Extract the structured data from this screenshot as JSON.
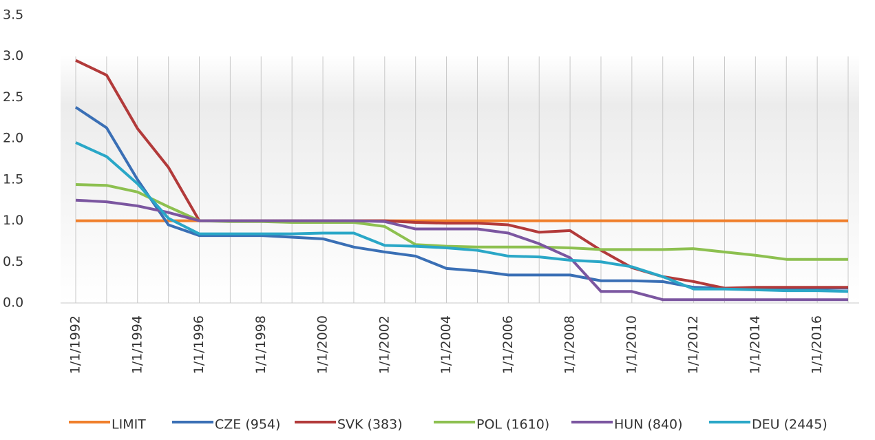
{
  "chart_data": {
    "type": "line",
    "categories": [
      "1/1/1992",
      null,
      "1/1/1994",
      null,
      "1/1/1996",
      null,
      "1/1/1998",
      null,
      "1/1/2000",
      null,
      "1/1/2002",
      null,
      "1/1/2004",
      null,
      "1/1/2006",
      null,
      "1/1/2008",
      null,
      "1/1/2010",
      null,
      "1/1/2012",
      null,
      "1/1/2014",
      null,
      "1/1/2016",
      null
    ],
    "series": [
      {
        "name": "LIMIT",
        "color": "#f07f2c",
        "values": [
          1.0,
          1.0,
          1.0,
          1.0,
          1.0,
          1.0,
          1.0,
          1.0,
          1.0,
          1.0,
          1.0,
          1.0,
          1.0,
          1.0,
          1.0,
          1.0,
          1.0,
          1.0,
          1.0,
          1.0,
          1.0,
          1.0,
          1.0,
          1.0,
          1.0,
          1.0
        ]
      },
      {
        "name": "CZE (954)",
        "color": "#3a6fb5",
        "values": [
          2.38,
          2.13,
          1.5,
          0.95,
          0.82,
          0.82,
          0.82,
          0.8,
          0.78,
          0.68,
          0.62,
          0.57,
          0.42,
          0.39,
          0.34,
          0.34,
          0.34,
          0.27,
          0.27,
          0.26,
          0.19,
          0.18,
          0.18,
          0.18,
          0.18,
          0.18
        ]
      },
      {
        "name": "SVK (383)",
        "color": "#b23a3a",
        "values": [
          2.95,
          2.77,
          2.12,
          1.65,
          1.0,
          1.0,
          1.0,
          1.0,
          1.0,
          1.0,
          1.0,
          0.98,
          0.97,
          0.97,
          0.95,
          0.86,
          0.88,
          0.64,
          0.43,
          0.32,
          0.26,
          0.18,
          0.19,
          0.19,
          0.19,
          0.19
        ]
      },
      {
        "name": "POL (1610)",
        "color": "#8dc050",
        "values": [
          1.44,
          1.43,
          1.35,
          1.17,
          1.0,
          0.99,
          0.99,
          0.98,
          0.98,
          0.98,
          0.93,
          0.71,
          0.69,
          0.68,
          0.68,
          0.68,
          0.67,
          0.65,
          0.65,
          0.65,
          0.66,
          0.62,
          0.58,
          0.53,
          0.53,
          0.53
        ]
      },
      {
        "name": "HUN (840)",
        "color": "#7b56a0",
        "values": [
          1.25,
          1.23,
          1.18,
          1.1,
          1.0,
          1.0,
          1.0,
          1.0,
          1.0,
          1.0,
          0.99,
          0.9,
          0.9,
          0.9,
          0.85,
          0.72,
          0.55,
          0.14,
          0.14,
          0.04,
          0.04,
          0.04,
          0.04,
          0.04,
          0.04,
          0.04
        ]
      },
      {
        "name": "DEU (2445)",
        "color": "#2aa7c7",
        "values": [
          1.95,
          1.78,
          1.45,
          1.03,
          0.84,
          0.84,
          0.84,
          0.84,
          0.85,
          0.85,
          0.7,
          0.69,
          0.67,
          0.64,
          0.57,
          0.56,
          0.52,
          0.5,
          0.44,
          0.32,
          0.17,
          0.17,
          0.16,
          0.15,
          0.15,
          0.14
        ]
      }
    ],
    "ylim": [
      0,
      3.5
    ],
    "yticks": [
      {
        "value": 0,
        "label": "0.0"
      },
      0.5,
      {
        "value": 1,
        "label": "1.0"
      },
      1.5,
      {
        "value": 2,
        "label": "2.0"
      },
      2.5,
      {
        "value": 3,
        "label": "3.0"
      },
      3.5
    ],
    "grid": true,
    "legend": "bottom"
  }
}
